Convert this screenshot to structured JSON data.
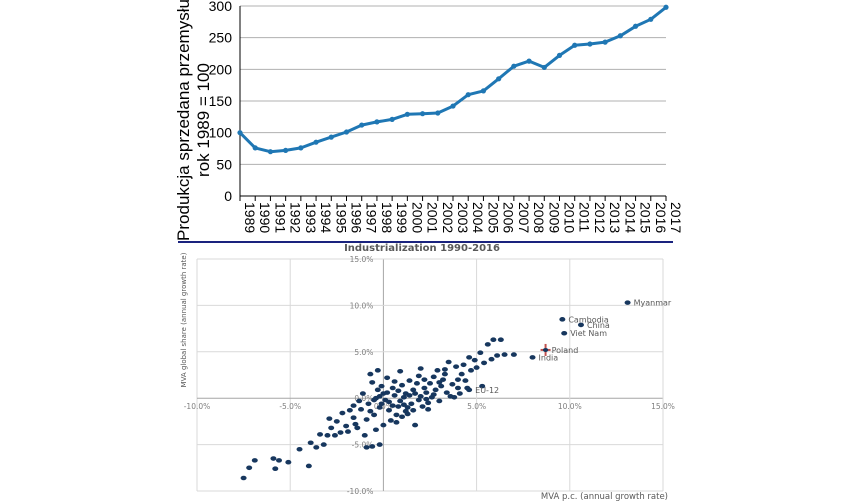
{
  "chart_data": [
    {
      "type": "line",
      "title": "",
      "ylabel_lines": [
        "Produkcja sprzedana przemysłu",
        "rok 1989 = 100"
      ],
      "xlabel": "",
      "ylim": [
        0,
        300
      ],
      "yticks": [
        0,
        50,
        100,
        150,
        200,
        250,
        300
      ],
      "grid": true,
      "legend": "none",
      "colors": {
        "line": "#1f77b4",
        "grid": "#b0b0b0",
        "axis": "#000000"
      },
      "categories": [
        "1989",
        "1990",
        "1991",
        "1992",
        "1993",
        "1994",
        "1995",
        "1996",
        "1997",
        "1998",
        "1999",
        "2000",
        "2001",
        "2002",
        "2003",
        "2004",
        "2005",
        "2006",
        "2007",
        "2008",
        "2009",
        "2010",
        "2011",
        "2012",
        "2013",
        "2014",
        "2015",
        "2016",
        "2017"
      ],
      "series": [
        {
          "values": [
            100,
            76,
            70,
            72,
            76,
            85,
            93,
            101,
            112,
            117,
            121,
            129,
            130,
            131,
            142,
            160,
            166,
            185,
            205,
            213,
            203,
            222,
            238,
            240,
            243,
            253,
            268,
            279,
            298
          ]
        }
      ]
    },
    {
      "type": "scatter",
      "title": "Industrialization 1990-2016",
      "xlabel": "MVA p.c. (annual growth rate)",
      "ylabel": "MVA global share (annual growth rate)",
      "xlim": [
        -10,
        15
      ],
      "ylim": [
        -10,
        15
      ],
      "xticks": [
        "-10.0%",
        "-5.0%",
        "0.0%",
        "5.0%",
        "10.0%",
        "15.0%"
      ],
      "yticks": [
        "-10.0%",
        "-5.0%",
        "0.0%",
        "5.0%",
        "10.0%",
        "15.0%"
      ],
      "grid": true,
      "legend": "none",
      "colors": {
        "point": "#17375e",
        "highlight": "#c0504d",
        "grid": "#d9d9d9",
        "axis": "#a6a6a6"
      },
      "labeled_points": [
        {
          "label": "Myanmar",
          "x": 13.1,
          "y": 10.3
        },
        {
          "label": "Cambodia",
          "x": 9.6,
          "y": 8.5
        },
        {
          "label": "China",
          "x": 10.6,
          "y": 7.9
        },
        {
          "label": "Viet Nam",
          "x": 9.7,
          "y": 7.0
        },
        {
          "label": "Poland",
          "x": 8.7,
          "y": 5.2,
          "highlight": true
        },
        {
          "label": "India",
          "x": 8.0,
          "y": 4.4
        },
        {
          "label": "EU-12",
          "x": 4.6,
          "y": 0.9
        }
      ],
      "points": [
        [
          -7.5,
          -8.6
        ],
        [
          -6.9,
          -6.7
        ],
        [
          -5.9,
          -6.5
        ],
        [
          -5.6,
          -6.7
        ],
        [
          -5.1,
          -6.9
        ],
        [
          -5.8,
          -7.6
        ],
        [
          -7.2,
          -7.5
        ],
        [
          -4.5,
          -5.5
        ],
        [
          -3.9,
          -4.8
        ],
        [
          -3.6,
          -5.3
        ],
        [
          -3.2,
          -5.0
        ],
        [
          -4.0,
          -7.3
        ],
        [
          -3.0,
          -4.0
        ],
        [
          -2.6,
          -4.0
        ],
        [
          -2.8,
          -3.2
        ],
        [
          -2.3,
          -3.7
        ],
        [
          -2.0,
          -3.0
        ],
        [
          -1.6,
          -2.1
        ],
        [
          -1.4,
          -3.2
        ],
        [
          -1.0,
          -4.0
        ],
        [
          -0.6,
          -5.2
        ],
        [
          -0.9,
          -5.3
        ],
        [
          -0.2,
          -5.0
        ],
        [
          -1.8,
          -1.3
        ],
        [
          -1.2,
          -1.2
        ],
        [
          -0.8,
          -0.6
        ],
        [
          -0.5,
          -1.8
        ],
        [
          -0.2,
          -1.0
        ],
        [
          -0.4,
          0.0
        ],
        [
          -0.1,
          -0.6
        ],
        [
          0.1,
          -0.2
        ],
        [
          0.3,
          -1.3
        ],
        [
          0.5,
          -0.8
        ],
        [
          0.7,
          -1.8
        ],
        [
          0.9,
          -0.3
        ],
        [
          1.1,
          0.1
        ],
        [
          1.3,
          -1.0
        ],
        [
          1.5,
          -0.6
        ],
        [
          0.2,
          0.6
        ],
        [
          0.6,
          0.3
        ],
        [
          0.8,
          0.8
        ],
        [
          1.2,
          0.5
        ],
        [
          1.6,
          0.9
        ],
        [
          2.0,
          0.2
        ],
        [
          2.3,
          0.6
        ],
        [
          2.6,
          0.1
        ],
        [
          2.8,
          0.9
        ],
        [
          3.1,
          1.3
        ],
        [
          3.4,
          0.6
        ],
        [
          3.7,
          1.5
        ],
        [
          4.0,
          2.0
        ],
        [
          3.3,
          2.6
        ],
        [
          2.7,
          2.3
        ],
        [
          2.2,
          2.0
        ],
        [
          1.8,
          1.6
        ],
        [
          1.4,
          1.9
        ],
        [
          1.0,
          1.4
        ],
        [
          0.6,
          1.8
        ],
        [
          -0.1,
          1.3
        ],
        [
          -0.6,
          1.7
        ],
        [
          -0.3,
          3.0
        ],
        [
          0.2,
          2.2
        ],
        [
          -1.1,
          0.5
        ],
        [
          -0.9,
          -2.3
        ],
        [
          -2.2,
          -1.6
        ],
        [
          -1.5,
          -2.8
        ],
        [
          0.4,
          -2.4
        ],
        [
          1.0,
          -2.0
        ],
        [
          1.7,
          -2.9
        ],
        [
          -0.4,
          -3.4
        ],
        [
          0.0,
          -2.9
        ],
        [
          1.9,
          -0.2
        ],
        [
          2.4,
          -0.5
        ],
        [
          3.0,
          -0.3
        ],
        [
          3.6,
          0.2
        ],
        [
          4.1,
          0.5
        ],
        [
          4.5,
          1.1
        ],
        [
          4.2,
          2.6
        ],
        [
          4.7,
          3.0
        ],
        [
          5.0,
          3.3
        ],
        [
          5.4,
          3.8
        ],
        [
          5.8,
          4.2
        ],
        [
          6.1,
          4.6
        ],
        [
          6.5,
          4.7
        ],
        [
          7.0,
          4.7
        ],
        [
          5.2,
          4.9
        ],
        [
          4.6,
          4.4
        ],
        [
          4.3,
          3.6
        ],
        [
          3.9,
          3.4
        ],
        [
          3.5,
          3.9
        ],
        [
          5.9,
          6.3
        ],
        [
          6.3,
          6.3
        ],
        [
          5.6,
          5.8
        ],
        [
          4.9,
          4.1
        ],
        [
          1.9,
          2.4
        ],
        [
          2.5,
          1.6
        ],
        [
          2.9,
          3.0
        ],
        [
          -0.7,
          2.6
        ],
        [
          0.9,
          2.9
        ],
        [
          1.3,
          -1.7
        ],
        [
          1.6,
          -1.3
        ],
        [
          2.1,
          -0.9
        ],
        [
          -1.3,
          -0.3
        ],
        [
          -0.3,
          0.9
        ],
        [
          0.5,
          1.1
        ],
        [
          3.8,
          0.1
        ],
        [
          4.4,
          1.9
        ],
        [
          2.0,
          3.2
        ],
        [
          3.2,
          2.0
        ],
        [
          1.1,
          -0.7
        ],
        [
          0.0,
          0.5
        ],
        [
          -2.5,
          -2.5
        ],
        [
          -1.9,
          -3.6
        ],
        [
          -3.4,
          -3.9
        ],
        [
          -0.7,
          -1.4
        ],
        [
          0.8,
          -0.9
        ],
        [
          2.2,
          1.1
        ],
        [
          2.7,
          0.4
        ],
        [
          3.0,
          1.7
        ],
        [
          5.3,
          1.3
        ],
        [
          4.0,
          1.1
        ],
        [
          1.4,
          0.3
        ],
        [
          0.3,
          -0.4
        ],
        [
          -0.2,
          0.2
        ],
        [
          -1.6,
          -0.8
        ],
        [
          -2.9,
          -2.2
        ],
        [
          0.7,
          -2.6
        ],
        [
          1.2,
          -1.4
        ],
        [
          2.4,
          -1.2
        ],
        [
          1.7,
          0.5
        ],
        [
          3.3,
          3.1
        ],
        [
          2.3,
          -0.1
        ],
        [
          -0.5,
          -0.2
        ]
      ]
    }
  ]
}
